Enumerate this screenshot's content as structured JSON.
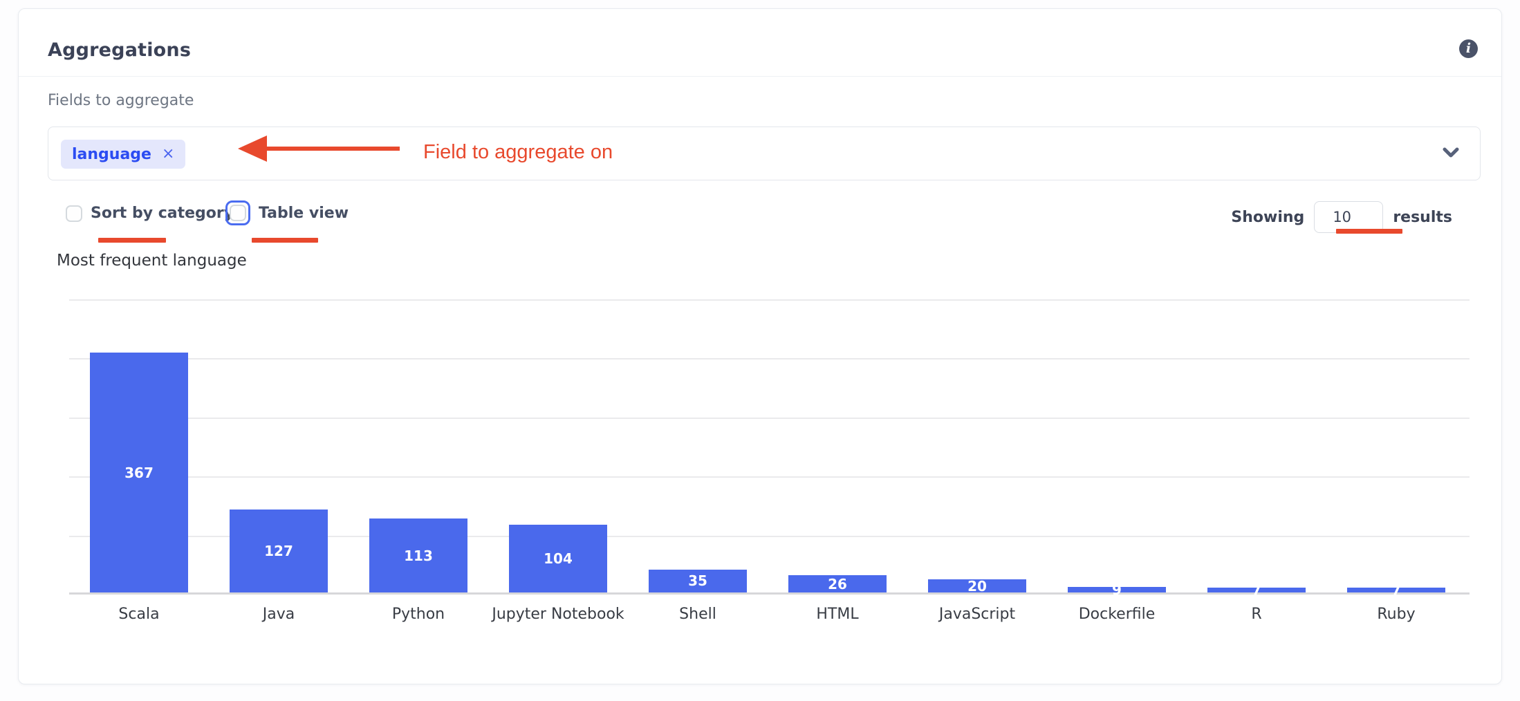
{
  "header": {
    "title": "Aggregations"
  },
  "fields": {
    "label": "Fields to aggregate",
    "chip_label": "language",
    "chip_remove": "×"
  },
  "controls": {
    "sort_label": "Sort by category",
    "table_label": "Table view",
    "showing_label": "Showing",
    "results_count": "10",
    "results_label": "results"
  },
  "annotation": {
    "arrow_text": "Field to aggregate on",
    "color": "#e8492d"
  },
  "chart_data": {
    "type": "bar",
    "title": "Most frequent language",
    "categories": [
      "Scala",
      "Java",
      "Python",
      "Jupyter Notebook",
      "Shell",
      "HTML",
      "JavaScript",
      "Dockerfile",
      "R",
      "Ruby"
    ],
    "values": [
      367,
      127,
      113,
      104,
      35,
      26,
      20,
      9,
      7,
      7
    ],
    "xlabel": "",
    "ylabel": "",
    "ylim": [
      0,
      452
    ],
    "grid": true,
    "gridline_count": 6,
    "legend": "none",
    "bar_color": "#4a69ec",
    "value_label_color": "#ffffff"
  },
  "colors": {
    "accent_blue": "#4a69ec",
    "chip_bg": "#e4e7fc",
    "chip_text": "#2b4cf2",
    "annotation_red": "#e8492d",
    "slate_text": "#3b4257"
  }
}
